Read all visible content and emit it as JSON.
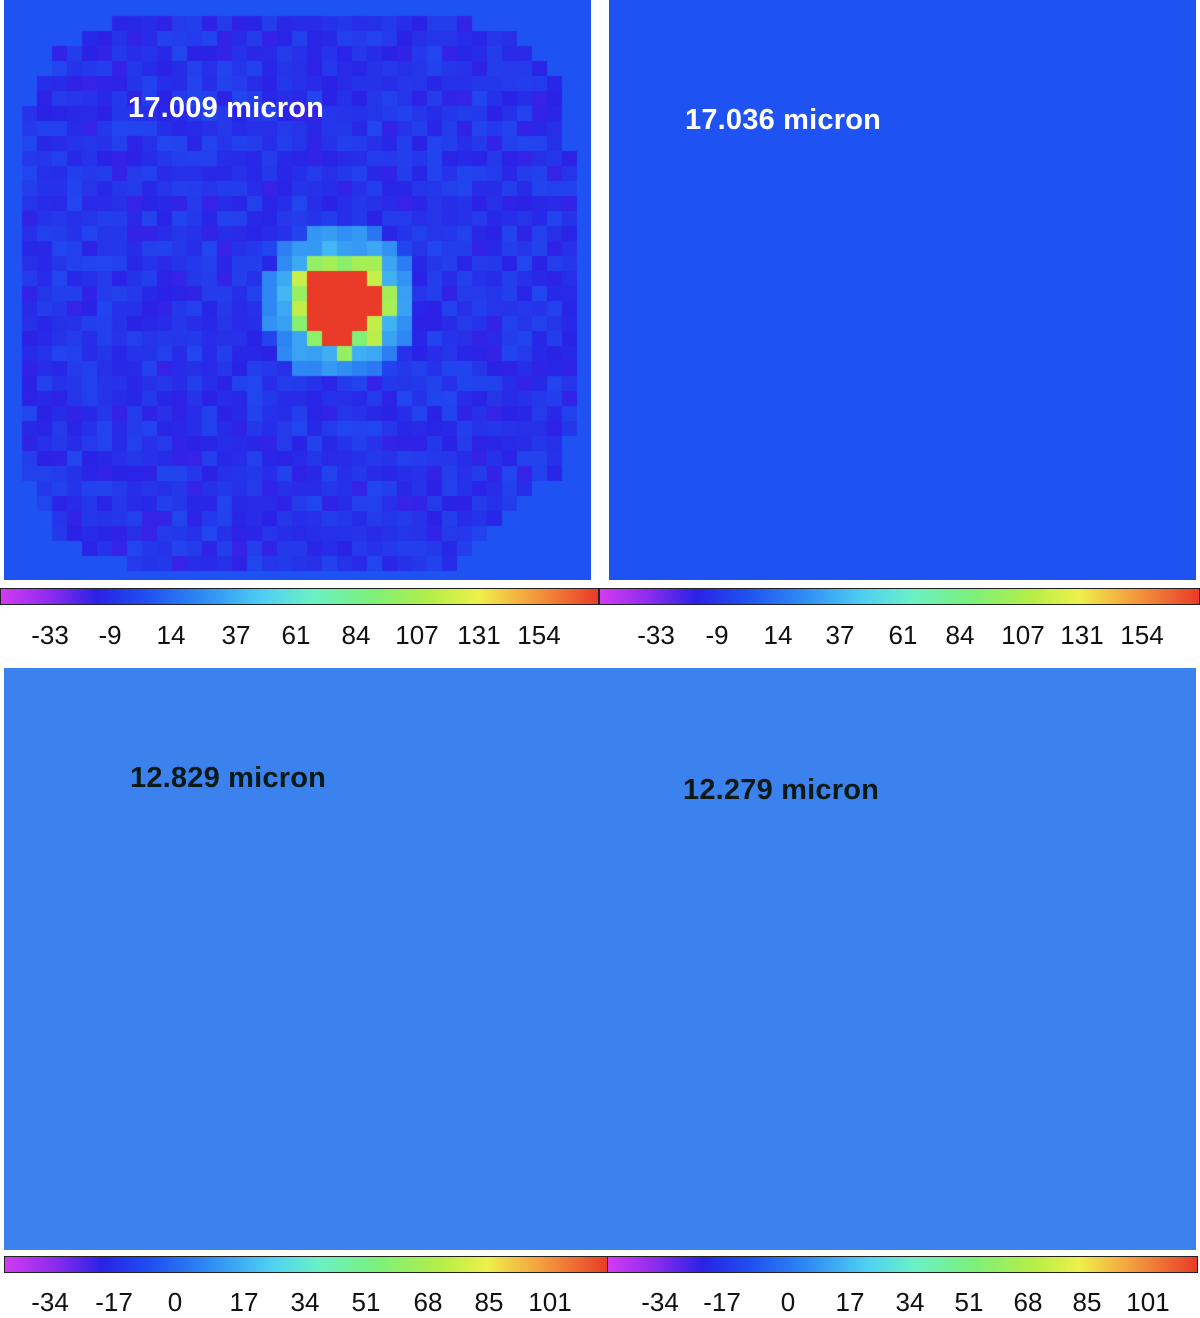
{
  "panels": [
    {
      "id": "p1",
      "label": "17.009 micron",
      "label_style": "light",
      "colormap_max": 154,
      "background_color": "#1f52f2",
      "base_level": 5,
      "noise": 10,
      "halo_level": 60,
      "outer_level": 5,
      "gradient": 0,
      "seed": 11
    },
    {
      "id": "p2",
      "label": "17.036 micron",
      "label_style": "light",
      "colormap_max": 154,
      "background_color": "#1f52f2",
      "base_level": 45,
      "noise": 12,
      "halo_level": 80,
      "outer_level": 30,
      "gradient": 25,
      "seed": 23
    },
    {
      "id": "p3",
      "label": "12.829 micron",
      "label_style": "dark",
      "colormap_max": 101,
      "background_color": "#3b82ee",
      "base_level": 22,
      "noise": 11,
      "halo_level": 55,
      "outer_level": 22,
      "gradient": 0,
      "seed": 37
    },
    {
      "id": "p4",
      "label": "12.279 micron",
      "label_style": "dark",
      "colormap_max": 101,
      "background_color": "#3b82ee",
      "base_level": 24,
      "noise": 11,
      "halo_level": 58,
      "outer_level": 26,
      "gradient": 10,
      "seed": 53
    }
  ],
  "colorbars": {
    "top": {
      "ticks": [
        "-33",
        "-9",
        "14",
        "37",
        "61",
        "84",
        "107",
        "131",
        "154"
      ],
      "min": -45,
      "max": 190
    },
    "bottom": {
      "ticks": [
        "-34",
        "-17",
        "0",
        "17",
        "34",
        "51",
        "68",
        "85",
        "101"
      ],
      "min": -45,
      "max": 125
    }
  },
  "colormap": [
    "#d23bf2",
    "#8e2cee",
    "#2a22e6",
    "#1f4ef0",
    "#2f8cf4",
    "#4fd0f2",
    "#6af0c6",
    "#7cf07a",
    "#b4ee48",
    "#eef04a",
    "#f4a640",
    "#ea3a28"
  ]
}
